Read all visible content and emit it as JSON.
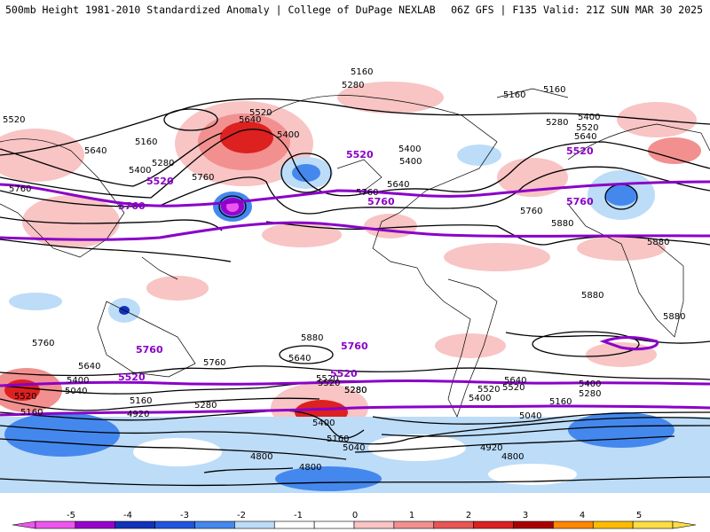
{
  "header": {
    "left": "500mb Height 1981-2010 Standardized Anomaly | College of DuPage NEXLAB",
    "right": "06Z GFS | F135 Valid: 21Z SUN MAR 30 2025"
  },
  "colors": {
    "highlight_contour": "#8a00c8",
    "contour": "#000000",
    "coastline": "#000000"
  },
  "contour_labels": [
    {
      "text": "5160"
    },
    {
      "text": "5280"
    },
    {
      "text": "5160"
    },
    {
      "text": "5160"
    },
    {
      "text": "5520"
    },
    {
      "text": "5640"
    },
    {
      "text": "5400"
    },
    {
      "text": "5160"
    },
    {
      "text": "5280"
    },
    {
      "text": "5400"
    },
    {
      "text": "5640"
    },
    {
      "text": "5760"
    },
    {
      "text": "5760"
    },
    {
      "text": "5400"
    },
    {
      "text": "5640"
    },
    {
      "text": "5400"
    },
    {
      "text": "5280"
    },
    {
      "text": "5400"
    },
    {
      "text": "5520"
    },
    {
      "text": "5640"
    },
    {
      "text": "5760"
    },
    {
      "text": "5880"
    },
    {
      "text": "5880"
    },
    {
      "text": "5880"
    },
    {
      "text": "5880"
    },
    {
      "text": "5760"
    },
    {
      "text": "5880"
    },
    {
      "text": "5760"
    },
    {
      "text": "5760"
    },
    {
      "text": "5640"
    },
    {
      "text": "5520"
    },
    {
      "text": "5400"
    },
    {
      "text": "5040"
    },
    {
      "text": "5160"
    },
    {
      "text": "5520"
    },
    {
      "text": "5160"
    },
    {
      "text": "4920"
    },
    {
      "text": "5280"
    },
    {
      "text": "5640"
    },
    {
      "text": "5520"
    },
    {
      "text": "5280"
    },
    {
      "text": "5400"
    },
    {
      "text": "5160"
    },
    {
      "text": "5040"
    },
    {
      "text": "4800"
    },
    {
      "text": "4800"
    },
    {
      "text": "4920"
    },
    {
      "text": "4800"
    },
    {
      "text": "5640"
    },
    {
      "text": "5520"
    },
    {
      "text": "5400"
    },
    {
      "text": "5280"
    },
    {
      "text": "5160"
    },
    {
      "text": "5040"
    },
    {
      "text": "5520"
    },
    {
      "text": "5400"
    },
    {
      "text": "5280"
    },
    {
      "text": "5520"
    }
  ],
  "highlight_labels": [
    {
      "text": "5520"
    },
    {
      "text": "5760"
    },
    {
      "text": "5520"
    },
    {
      "text": "5760"
    },
    {
      "text": "5520"
    },
    {
      "text": "5760"
    },
    {
      "text": "5760"
    },
    {
      "text": "5520"
    },
    {
      "text": "5760"
    },
    {
      "text": "5520"
    }
  ],
  "legend": {
    "ticks": [
      "-5",
      "-4",
      "-3",
      "-2",
      "-1",
      "0",
      "1",
      "2",
      "3",
      "4",
      "5"
    ],
    "colors": [
      "#ee55ee",
      "#9900cc",
      "#1133bb",
      "#2255dd",
      "#4488ee",
      "#bcdcf8",
      "#ffffff",
      "#ffffff",
      "#f8c4c4",
      "#f29090",
      "#e85555",
      "#dd2020",
      "#aa0000",
      "#ff8800",
      "#ffbb00",
      "#ffdd44"
    ]
  }
}
